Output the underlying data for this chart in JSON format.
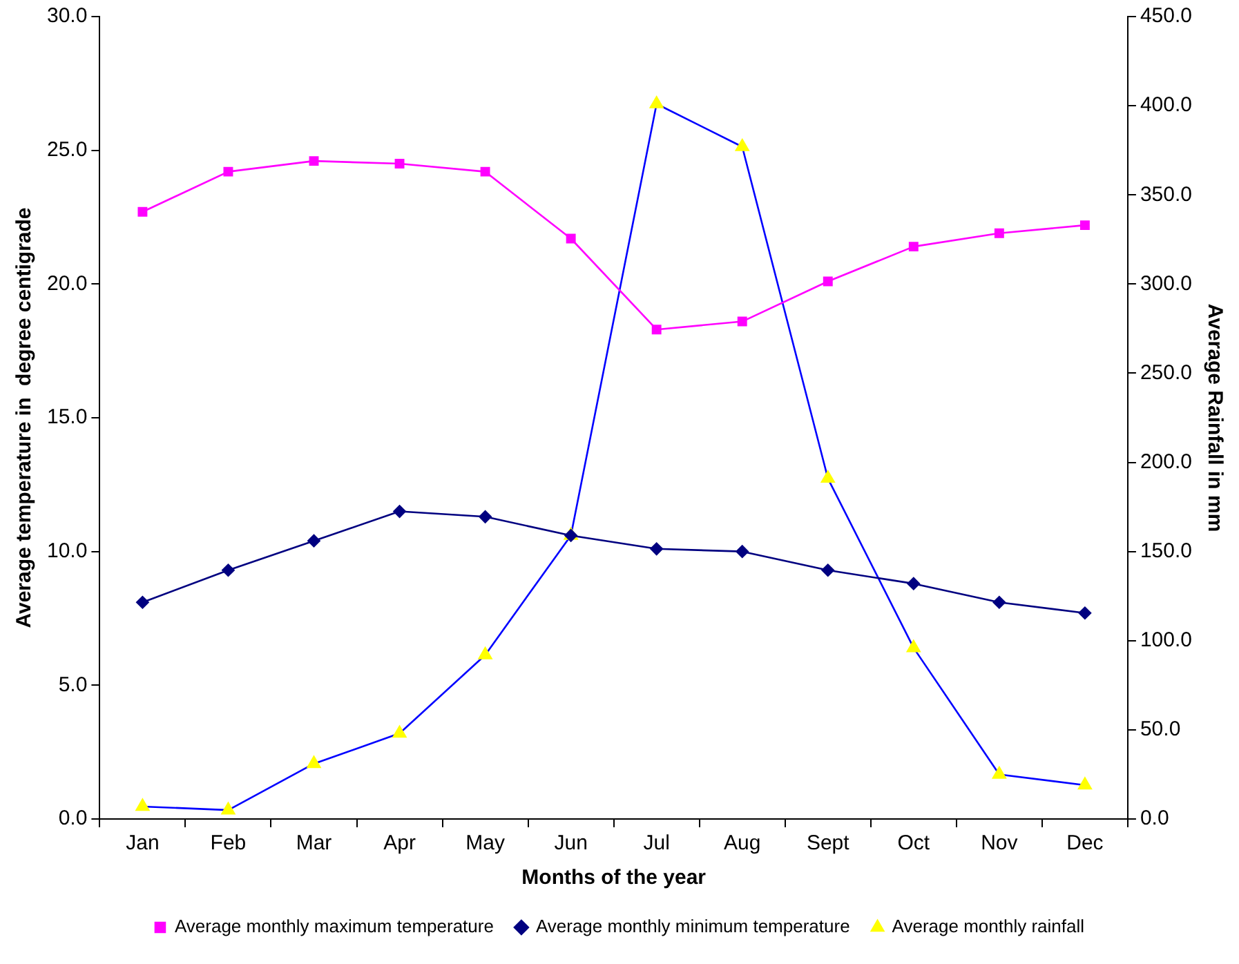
{
  "chart_data": {
    "type": "line",
    "xlabel": "Months of the year",
    "ylabel": "Average temperature in  degree centigrade",
    "y2label": "Average Rainfall in mm",
    "categories": [
      "Jan",
      "Feb",
      "Mar",
      "Apr",
      "May",
      "Jun",
      "Jul",
      "Aug",
      "Sept",
      "Oct",
      "Nov",
      "Dec"
    ],
    "series": [
      {
        "name": "Average monthly maximum temperature",
        "color": "#ff00ff",
        "marker": "square",
        "values": [
          22.7,
          24.2,
          24.6,
          24.5,
          24.2,
          21.7,
          18.3,
          18.6,
          20.1,
          21.4,
          21.9,
          22.2
        ]
      },
      {
        "name": "Average monthly minimum temperature",
        "color": "#000080",
        "marker": "diamond",
        "values": [
          8.1,
          9.3,
          10.4,
          11.5,
          11.3,
          10.6,
          10.1,
          10.0,
          9.3,
          8.8,
          8.1,
          7.7
        ]
      },
      {
        "name": "Average monthly rainfall",
        "color": "#0000ff",
        "colors": [
          "#ffff00",
          "#ffff00",
          "#ffff00",
          "#ffff00",
          "#ffff00",
          "#ffff00",
          "#ffff00",
          "#ffff00",
          "#ffff00",
          "#ffff00",
          "#ffff00",
          "#ffff00"
        ],
        "marker": "triangle",
        "axis": "y2",
        "values": [
          7,
          5,
          31,
          48,
          92,
          159,
          401,
          377,
          191,
          96,
          25,
          19
        ]
      }
    ],
    "ylim": [
      0,
      30
    ],
    "yticks": [
      {
        "value": 0,
        "label": "0.0"
      },
      {
        "value": 5,
        "label": "5.0"
      },
      {
        "value": 10,
        "label": "10.0"
      },
      {
        "value": 15,
        "label": "15.0"
      },
      {
        "value": 20,
        "label": "20.0"
      },
      {
        "value": 25,
        "label": "25.0"
      },
      {
        "value": 30,
        "label": "30.0"
      }
    ],
    "y2lim": [
      0,
      450
    ],
    "y2ticks": [
      {
        "value": 0,
        "label": "0.0"
      },
      {
        "value": 50,
        "label": "50.0"
      },
      {
        "value": 100,
        "label": "100.0"
      },
      {
        "value": 150,
        "label": "150.0"
      },
      {
        "value": 200,
        "label": "200.0"
      },
      {
        "value": 250,
        "label": "250.0"
      },
      {
        "value": 300,
        "label": "300.0"
      },
      {
        "value": 350,
        "label": "350.0"
      },
      {
        "value": 400,
        "label": "400.0"
      },
      {
        "value": 450,
        "label": "450.0"
      }
    ],
    "grid": false,
    "legend": "bottom"
  }
}
